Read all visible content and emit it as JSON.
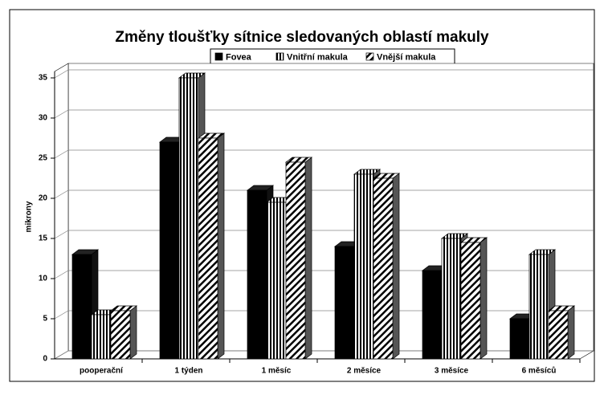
{
  "chart_data": {
    "type": "bar3d",
    "title": "Změny tloušťky sítnice sledovaných oblastí makuly",
    "ylabel": "mikrony",
    "categories": [
      "pooperační",
      "1 týden",
      "1 měsíc",
      "2 měsíce",
      "3 měsíce",
      "6 měsíců"
    ],
    "series": [
      {
        "name": "Fovea",
        "color": "#000000",
        "pattern": "solid",
        "values": [
          13,
          27,
          21,
          14,
          11,
          5
        ]
      },
      {
        "name": "Vnitřní makula",
        "color": "#000000",
        "pattern": "vertical",
        "values": [
          5.5,
          35,
          19.5,
          23,
          15,
          13
        ]
      },
      {
        "name": "Vnější makula",
        "color": "#000000",
        "pattern": "diagonal",
        "values": [
          6,
          27.5,
          24.5,
          22.5,
          14.5,
          6
        ]
      }
    ],
    "ylim": [
      0,
      35
    ],
    "yticks": [
      0,
      5,
      10,
      15,
      20,
      25,
      30,
      35
    ],
    "grid": true,
    "legend": "top"
  }
}
